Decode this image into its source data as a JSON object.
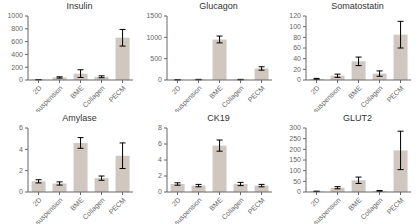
{
  "chart_data": [
    {
      "type": "bar",
      "title": "Insulin",
      "categories": [
        "2D",
        "suspension",
        "BME",
        "Collagen",
        "PECM"
      ],
      "values": [
        5,
        40,
        100,
        50,
        660
      ],
      "errors": [
        2,
        10,
        60,
        15,
        130
      ],
      "ylim": [
        0,
        1000
      ],
      "yticks": [
        0,
        200,
        400,
        600,
        800,
        1000
      ],
      "color": "#d0c8c0"
    },
    {
      "type": "bar",
      "title": "Glucagon",
      "categories": [
        "2D",
        "suspension",
        "BME",
        "Collagen",
        "PECM"
      ],
      "values": [
        5,
        10,
        950,
        10,
        270
      ],
      "errors": [
        2,
        5,
        80,
        5,
        40
      ],
      "ylim": [
        0,
        1500
      ],
      "yticks": [
        0,
        500,
        1000,
        1500
      ],
      "color": "#d0c8c0"
    },
    {
      "type": "bar",
      "title": "Somatostatin",
      "categories": [
        "2D",
        "suspension",
        "BME",
        "Collagen",
        "PECM"
      ],
      "values": [
        2,
        8,
        35,
        12,
        85
      ],
      "errors": [
        1,
        3,
        8,
        5,
        25
      ],
      "ylim": [
        0,
        120
      ],
      "yticks": [
        0,
        20,
        40,
        60,
        80,
        100,
        120
      ],
      "color": "#d0c8c0"
    },
    {
      "type": "bar",
      "title": "Amylase",
      "categories": [
        "2D",
        "suspension",
        "BME",
        "Collagen",
        "PECM"
      ],
      "values": [
        1.0,
        0.8,
        4.6,
        1.3,
        3.4
      ],
      "errors": [
        0.15,
        0.15,
        0.5,
        0.2,
        1.2
      ],
      "ylim": [
        0,
        6
      ],
      "yticks": [
        0,
        2,
        4,
        6
      ],
      "color": "#d0c8c0"
    },
    {
      "type": "bar",
      "title": "CK19",
      "categories": [
        "2D",
        "suspension",
        "BME",
        "Collagen",
        "PECM"
      ],
      "values": [
        1.0,
        0.8,
        5.8,
        1.0,
        0.8
      ],
      "errors": [
        0.15,
        0.15,
        0.7,
        0.2,
        0.15
      ],
      "ylim": [
        0,
        8
      ],
      "yticks": [
        0,
        2,
        4,
        6,
        8
      ],
      "color": "#d0c8c0"
    },
    {
      "type": "bar",
      "title": "GLUT2",
      "categories": [
        "2D",
        "suspension",
        "BME",
        "Collagen",
        "PECM"
      ],
      "values": [
        3,
        20,
        55,
        5,
        195
      ],
      "errors": [
        1,
        5,
        15,
        2,
        90
      ],
      "ylim": [
        0,
        300
      ],
      "yticks": [
        0,
        50,
        100,
        150,
        200,
        250,
        300
      ],
      "color": "#d0c8c0"
    }
  ]
}
